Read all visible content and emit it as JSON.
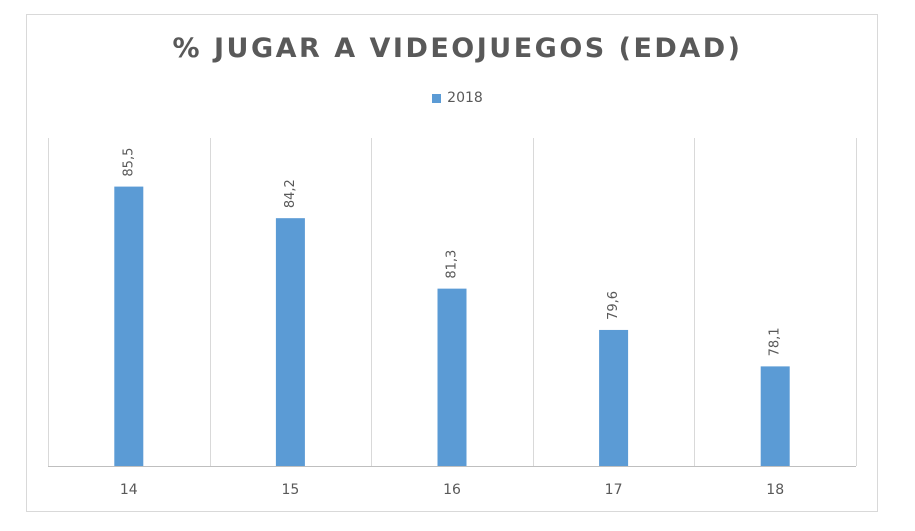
{
  "chart_data": {
    "type": "bar",
    "title": "% JUGAR A VIDEOJUEGOS (EDAD)",
    "categories": [
      "14",
      "15",
      "16",
      "17",
      "18"
    ],
    "series": [
      {
        "name": "2018",
        "values": [
          85.5,
          84.2,
          81.3,
          79.6,
          78.1
        ],
        "data_labels": [
          "85,5",
          "84,2",
          "81,3",
          "79,6",
          "78,1"
        ],
        "color": "#5b9bd5"
      }
    ],
    "ylim": [
      74.0,
      87.5
    ],
    "xlabel": "",
    "ylabel": "",
    "legend": "top-center",
    "grid": "vertical category separators",
    "data_label_orientation": "vertical"
  }
}
